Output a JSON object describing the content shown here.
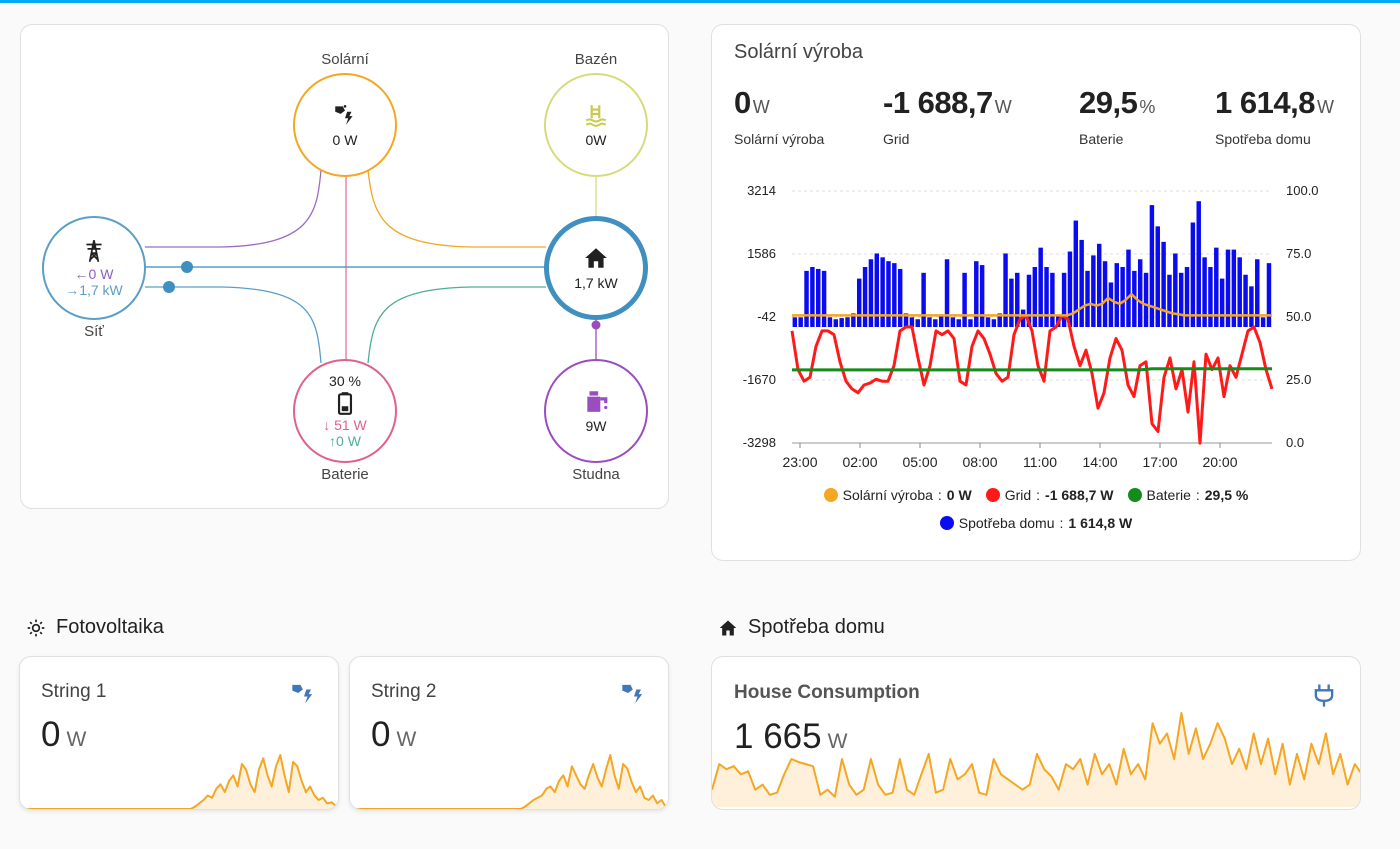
{
  "energy_flow": {
    "solar": {
      "label": "Solární",
      "value": "0 W"
    },
    "pool": {
      "label": "Bazén",
      "value": "0W"
    },
    "grid": {
      "label": "Síť",
      "import": "0 W",
      "export": "1,7 kW"
    },
    "home": {
      "value": "1,7 kW"
    },
    "battery": {
      "label": "Baterie",
      "percent": "30 %",
      "charge": "51 W",
      "discharge": "0 W"
    },
    "well": {
      "label": "Studna",
      "value": "9W"
    }
  },
  "solar_card": {
    "title": "Solární výroba",
    "stats": [
      {
        "value": "0",
        "unit": "W",
        "label": "Solární výroba"
      },
      {
        "value": "-1 688,7",
        "unit": "W",
        "label": "Grid"
      },
      {
        "value": "29,5",
        "unit": "%",
        "label": "Baterie"
      },
      {
        "value": "1 614,8",
        "unit": "W",
        "label": "Spotřeba domu"
      }
    ],
    "legend": [
      {
        "name": "Solární výroba",
        "value": "0 W",
        "color": "#f5a623"
      },
      {
        "name": "Grid",
        "value": "-1 688,7 W",
        "color": "#ff1a1a"
      },
      {
        "name": "Baterie",
        "value": "29,5 %",
        "color": "#148c1b"
      },
      {
        "name": "Spotřeba domu",
        "value": "1 614,8 W",
        "color": "#0b0bf0"
      }
    ]
  },
  "chart_data": {
    "type": "bar",
    "x_ticks": [
      "23:00",
      "02:00",
      "05:00",
      "08:00",
      "11:00",
      "14:00",
      "17:00",
      "20:00"
    ],
    "y_left_ticks": [
      "3214",
      "1586",
      "-42",
      "-1670",
      "-3298"
    ],
    "y_right_ticks": [
      "100.0",
      "75.0",
      "50.0",
      "25.0",
      "0.0"
    ],
    "ylim_left": [
      -3298,
      3214
    ],
    "ylim_right": [
      0,
      100
    ],
    "grid": true,
    "legend_placement": "bottom",
    "series": [
      {
        "name": "Spotřeba domu",
        "kind": "bar",
        "color": "#0b0bf0",
        "axis": "left",
        "values": [
          200,
          200,
          1400,
          1500,
          1450,
          1400,
          200,
          150,
          180,
          200,
          300,
          1200,
          1500,
          1700,
          1850,
          1750,
          1650,
          1600,
          1450,
          300,
          200,
          150,
          1350,
          200,
          150,
          250,
          1700,
          200,
          150,
          1350,
          150,
          1650,
          1550,
          200,
          150,
          300,
          1850,
          1200,
          1350,
          400,
          1300,
          1500,
          2000,
          1500,
          1350,
          250,
          1350,
          1900,
          2700,
          2200,
          1400,
          1800,
          2100,
          1650,
          1100,
          1600,
          1500,
          1950,
          1400,
          1700,
          1350,
          3100,
          2550,
          2150,
          1300,
          1850,
          1350,
          1500,
          2650,
          3200,
          1750,
          1500,
          2000,
          1200,
          1950,
          1950,
          1750,
          1300,
          1000,
          1700,
          200,
          1600
        ]
      },
      {
        "name": "Grid",
        "kind": "line",
        "color": "#ff1a1a",
        "axis": "left",
        "values": [
          -400,
          -1400,
          -1700,
          -1600,
          -800,
          -400,
          -400,
          -500,
          -1200,
          -1700,
          -1900,
          -2000,
          -1800,
          -1750,
          -1650,
          -1700,
          -1700,
          -1300,
          -400,
          -300,
          -300,
          -1100,
          -1800,
          -1300,
          -400,
          -500,
          -400,
          -600,
          -1700,
          -1800,
          -800,
          -400,
          -600,
          -1000,
          -1500,
          -1700,
          -1600,
          -500,
          -100,
          0,
          -400,
          -1300,
          -1700,
          -400,
          -300,
          0,
          -100,
          -800,
          -1300,
          -900,
          -1500,
          -2400,
          -2000,
          -1100,
          -600,
          -900,
          -1800,
          -2100,
          -1300,
          -1200,
          -2800,
          -3000,
          -1600,
          -1100,
          -1900,
          -1400,
          -2500,
          -1200,
          -3300,
          -1000,
          -1400,
          -1100,
          -2100,
          -1300,
          -1600,
          -1000,
          -400,
          -300,
          -700,
          -1400,
          -1900
        ]
      },
      {
        "name": "Baterie",
        "kind": "line",
        "color": "#148c1b",
        "axis": "right",
        "values": [
          29,
          29,
          29,
          29,
          29,
          29,
          29,
          29,
          29,
          29,
          29,
          29,
          29,
          29,
          29,
          29,
          29,
          29,
          29,
          29,
          29,
          29,
          29,
          29,
          29,
          29,
          29,
          29,
          29,
          29,
          29.5,
          29.5,
          29.5,
          29.5,
          29.5,
          29.5,
          29.5,
          29.5,
          29.5,
          29.5,
          29.5
        ]
      },
      {
        "name": "Solární výroba",
        "kind": "line",
        "color": "#f5a623",
        "axis": "left",
        "values": [
          0,
          0,
          0,
          0,
          0,
          0,
          0,
          0,
          0,
          0,
          0,
          0,
          0,
          0,
          0,
          0,
          0,
          0,
          0,
          0,
          0,
          0,
          0,
          0,
          0,
          0,
          0,
          0,
          0,
          0,
          0,
          0,
          0,
          0,
          0,
          0,
          0,
          0,
          0,
          0,
          0,
          0,
          0,
          0,
          0,
          0,
          0,
          0,
          50,
          150,
          250,
          300,
          250,
          300,
          450,
          350,
          300,
          400,
          550,
          400,
          300,
          250,
          200,
          150,
          100,
          50,
          30,
          0,
          0,
          0,
          0,
          0,
          0,
          0,
          0,
          0,
          0,
          0,
          0,
          0,
          0,
          0,
          0
        ]
      }
    ]
  },
  "sections": {
    "pv": "Fotovoltaika",
    "home": "Spotřeba domu"
  },
  "tiles": [
    {
      "title": "String 1",
      "value": "0",
      "unit": "W",
      "spark": [
        0,
        0,
        0,
        0,
        0,
        0,
        0,
        0,
        0,
        0,
        0,
        0,
        0,
        0,
        0,
        0,
        0,
        0,
        0,
        0,
        0,
        0,
        0,
        0,
        0,
        0,
        0,
        0,
        0,
        0,
        0,
        0,
        0,
        0,
        0,
        0,
        0,
        0,
        0,
        0,
        0,
        2,
        5,
        8,
        12,
        10,
        18,
        22,
        15,
        25,
        30,
        20,
        40,
        35,
        22,
        15,
        35,
        45,
        30,
        20,
        38,
        48,
        30,
        15,
        42,
        38,
        25,
        15,
        20,
        12,
        8,
        10,
        5,
        6,
        3,
        2
      ]
    },
    {
      "title": "String 2",
      "value": "0",
      "unit": "W",
      "spark": [
        0,
        0,
        0,
        0,
        0,
        0,
        0,
        0,
        0,
        0,
        0,
        0,
        0,
        0,
        0,
        0,
        0,
        0,
        0,
        0,
        0,
        0,
        0,
        0,
        0,
        0,
        0,
        0,
        0,
        0,
        0,
        0,
        0,
        0,
        0,
        0,
        0,
        0,
        0,
        0,
        0,
        2,
        5,
        8,
        10,
        12,
        18,
        20,
        15,
        25,
        30,
        20,
        38,
        30,
        22,
        18,
        30,
        40,
        28,
        20,
        35,
        48,
        30,
        18,
        40,
        36,
        24,
        15,
        20,
        10,
        8,
        12,
        5,
        8,
        2,
        4
      ]
    },
    {
      "title": "House Consumption",
      "value": "1 665",
      "unit": "W",
      "spark": [
        15,
        40,
        35,
        38,
        30,
        33,
        15,
        20,
        10,
        12,
        30,
        45,
        42,
        40,
        38,
        10,
        15,
        8,
        45,
        20,
        10,
        15,
        45,
        20,
        10,
        12,
        45,
        15,
        10,
        30,
        50,
        12,
        15,
        45,
        25,
        30,
        40,
        12,
        10,
        45,
        30,
        25,
        20,
        15,
        20,
        50,
        35,
        28,
        15,
        40,
        35,
        45,
        20,
        50,
        30,
        40,
        20,
        55,
        30,
        40,
        25,
        80,
        60,
        70,
        45,
        90,
        50,
        75,
        45,
        60,
        80,
        65,
        40,
        55,
        35,
        70,
        40,
        65,
        30,
        60,
        20,
        50,
        25,
        60,
        40,
        70,
        30,
        50,
        20,
        40,
        30
      ]
    }
  ]
}
